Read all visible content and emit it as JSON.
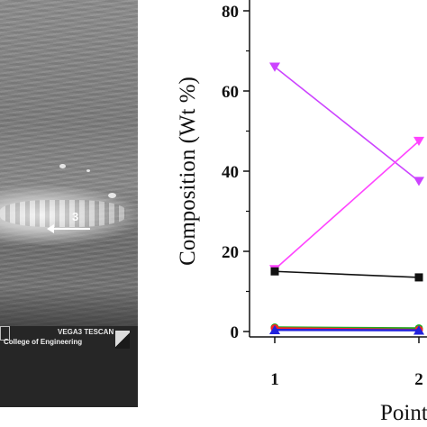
{
  "sem_image": {
    "point_label": "3",
    "instrument_label": "VEGA3 TESCAN",
    "institution_label": "College of Engineering"
  },
  "chart_data": {
    "type": "line",
    "title": "",
    "xlabel": "Point",
    "ylabel": "Composition (Wt %)",
    "x": [
      1,
      2
    ],
    "xticks": [
      "1",
      "2"
    ],
    "yticks": [
      "0",
      "20",
      "40",
      "60",
      "80"
    ],
    "ylim": [
      0,
      80
    ],
    "grid": false,
    "series": [
      {
        "color": "#cc44ff",
        "marker": "triangle-down",
        "values": [
          66,
          37.5
        ]
      },
      {
        "color": "#ff44ff",
        "marker": "triangle-down",
        "values": [
          15.5,
          47.5
        ]
      },
      {
        "color": "#111111",
        "marker": "square",
        "values": [
          15,
          13.5
        ]
      },
      {
        "color": "#22aa22",
        "marker": "circle",
        "values": [
          1,
          0.8
        ]
      },
      {
        "color": "#ff2222",
        "marker": "circle",
        "values": [
          0.8,
          0.4
        ]
      },
      {
        "color": "#2222dd",
        "marker": "triangle-up",
        "values": [
          0.4,
          0.3
        ]
      }
    ]
  }
}
